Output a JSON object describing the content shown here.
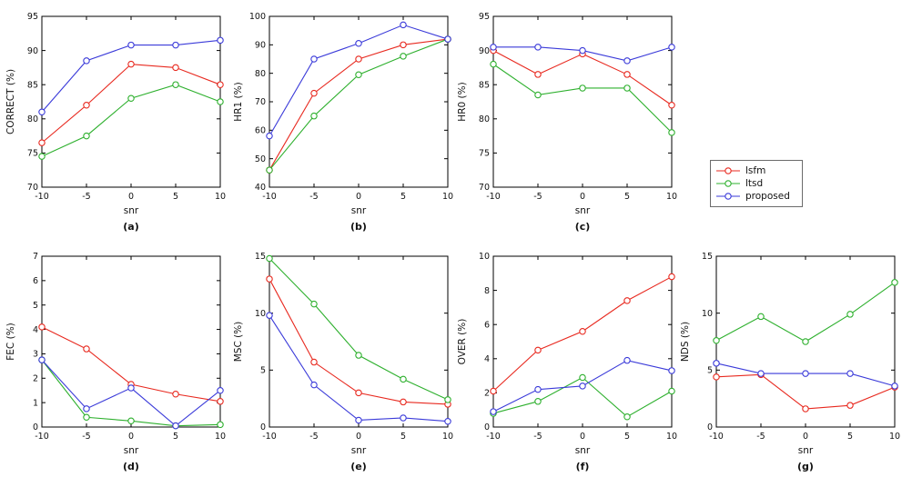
{
  "legend": {
    "entries": [
      {
        "label": "lsfm",
        "color": "#e8291f"
      },
      {
        "label": "ltsd",
        "color": "#2eb02e"
      },
      {
        "label": "proposed",
        "color": "#3a3ad9"
      }
    ]
  },
  "chart_data": [
    {
      "type": "line",
      "panel_label": "(a)",
      "xlabel": "snr",
      "ylabel": "CORRECT (%)",
      "x": [
        -10,
        -5,
        0,
        5,
        10
      ],
      "ylim": [
        70,
        95
      ],
      "yticks": [
        70,
        75,
        80,
        85,
        90,
        95
      ],
      "series": [
        {
          "name": "lsfm",
          "values": [
            76.5,
            82,
            88,
            87.5,
            85
          ]
        },
        {
          "name": "ltsd",
          "values": [
            74.5,
            77.5,
            83,
            85,
            82.5
          ]
        },
        {
          "name": "proposed",
          "values": [
            81,
            88.5,
            90.8,
            90.8,
            91.5
          ]
        }
      ]
    },
    {
      "type": "line",
      "panel_label": "(b)",
      "xlabel": "snr",
      "ylabel": "HR1 (%)",
      "x": [
        -10,
        -5,
        0,
        5,
        10
      ],
      "ylim": [
        40,
        100
      ],
      "yticks": [
        40,
        50,
        60,
        70,
        80,
        90,
        100
      ],
      "series": [
        {
          "name": "lsfm",
          "values": [
            46,
            73,
            85,
            90,
            92
          ]
        },
        {
          "name": "ltsd",
          "values": [
            46,
            65,
            79.5,
            86,
            92
          ]
        },
        {
          "name": "proposed",
          "values": [
            58,
            85,
            90.5,
            97,
            92
          ]
        }
      ]
    },
    {
      "type": "line",
      "panel_label": "(c)",
      "xlabel": "snr",
      "ylabel": "HR0 (%)",
      "x": [
        -10,
        -5,
        0,
        5,
        10
      ],
      "ylim": [
        70,
        95
      ],
      "yticks": [
        70,
        75,
        80,
        85,
        90,
        95
      ],
      "series": [
        {
          "name": "lsfm",
          "values": [
            90,
            86.5,
            89.5,
            86.5,
            82
          ]
        },
        {
          "name": "ltsd",
          "values": [
            88,
            83.5,
            84.5,
            84.5,
            78
          ]
        },
        {
          "name": "proposed",
          "values": [
            90.5,
            90.5,
            90,
            88.5,
            90.5
          ]
        }
      ]
    },
    {
      "type": "line",
      "panel_label": "(d)",
      "xlabel": "snr",
      "ylabel": "FEC (%)",
      "x": [
        -10,
        -5,
        0,
        5,
        10
      ],
      "ylim": [
        0,
        7
      ],
      "yticks": [
        0,
        1,
        2,
        3,
        4,
        5,
        6,
        7
      ],
      "series": [
        {
          "name": "lsfm",
          "values": [
            4.1,
            3.2,
            1.75,
            1.35,
            1.05
          ]
        },
        {
          "name": "ltsd",
          "values": [
            2.75,
            0.4,
            0.25,
            0.05,
            0.1
          ]
        },
        {
          "name": "proposed",
          "values": [
            2.75,
            0.75,
            1.6,
            0.05,
            1.5
          ]
        }
      ]
    },
    {
      "type": "line",
      "panel_label": "(e)",
      "xlabel": "snr",
      "ylabel": "MSC (%)",
      "x": [
        -10,
        -5,
        0,
        5,
        10
      ],
      "ylim": [
        0,
        15
      ],
      "yticks": [
        0,
        5,
        10,
        15
      ],
      "series": [
        {
          "name": "lsfm",
          "values": [
            13,
            5.7,
            3.0,
            2.2,
            2.0
          ]
        },
        {
          "name": "ltsd",
          "values": [
            14.8,
            10.8,
            6.3,
            4.2,
            2.4
          ]
        },
        {
          "name": "proposed",
          "values": [
            9.8,
            3.7,
            0.6,
            0.8,
            0.5
          ]
        }
      ]
    },
    {
      "type": "line",
      "panel_label": "(f)",
      "xlabel": "snr",
      "ylabel": "OVER (%)",
      "x": [
        -10,
        -5,
        0,
        5,
        10
      ],
      "ylim": [
        0,
        10
      ],
      "yticks": [
        0,
        2,
        4,
        6,
        8,
        10
      ],
      "series": [
        {
          "name": "lsfm",
          "values": [
            2.1,
            4.5,
            5.6,
            7.4,
            8.8
          ]
        },
        {
          "name": "ltsd",
          "values": [
            0.8,
            1.5,
            2.9,
            0.6,
            2.1
          ]
        },
        {
          "name": "proposed",
          "values": [
            0.9,
            2.2,
            2.4,
            3.9,
            3.3
          ]
        }
      ]
    },
    {
      "type": "line",
      "panel_label": "(g)",
      "xlabel": "snr",
      "ylabel": "NDS (%)",
      "x": [
        -10,
        -5,
        0,
        5,
        10
      ],
      "ylim": [
        0,
        15
      ],
      "yticks": [
        0,
        5,
        10,
        15
      ],
      "series": [
        {
          "name": "lsfm",
          "values": [
            4.4,
            4.6,
            1.6,
            1.9,
            3.5
          ]
        },
        {
          "name": "ltsd",
          "values": [
            7.6,
            9.7,
            7.5,
            9.9,
            12.7
          ]
        },
        {
          "name": "proposed",
          "values": [
            5.6,
            4.7,
            4.7,
            4.7,
            3.6
          ]
        }
      ]
    }
  ]
}
